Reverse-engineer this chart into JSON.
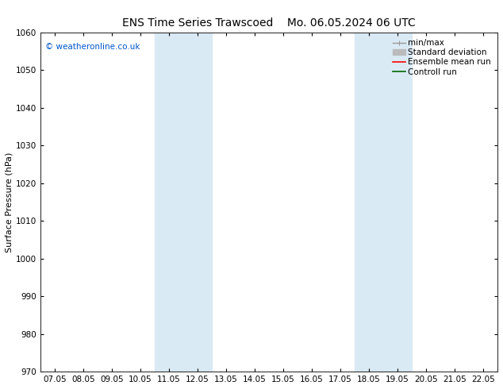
{
  "title_left": "ENS Time Series Trawscoed",
  "title_right": "Mo. 06.05.2024 06 UTC",
  "ylabel": "Surface Pressure (hPa)",
  "ylim": [
    970,
    1060
  ],
  "yticks": [
    970,
    980,
    990,
    1000,
    1010,
    1020,
    1030,
    1040,
    1050,
    1060
  ],
  "xtick_dates": [
    "07.05",
    "08.05",
    "09.05",
    "10.05",
    "11.05",
    "12.05",
    "13.05",
    "14.05",
    "15.05",
    "16.05",
    "17.05",
    "18.05",
    "19.05",
    "20.05",
    "21.05",
    "22.05"
  ],
  "shaded_bands": [
    {
      "start": 4,
      "end": 6
    },
    {
      "start": 11,
      "end": 13
    }
  ],
  "shade_color": "#daeaf5",
  "background_color": "#ffffff",
  "copyright_text": "© weatheronline.co.uk",
  "copyright_color": "#0055cc",
  "legend_items": [
    {
      "label": "min/max",
      "color": "#999999"
    },
    {
      "label": "Standard deviation",
      "color": "#bbbbbb"
    },
    {
      "label": "Ensemble mean run",
      "color": "#ff0000"
    },
    {
      "label": "Controll run",
      "color": "#006600"
    }
  ],
  "title_fontsize": 10,
  "tick_fontsize": 7.5,
  "ylabel_fontsize": 8,
  "legend_fontsize": 7.5,
  "figsize": [
    6.34,
    4.9
  ],
  "dpi": 100
}
